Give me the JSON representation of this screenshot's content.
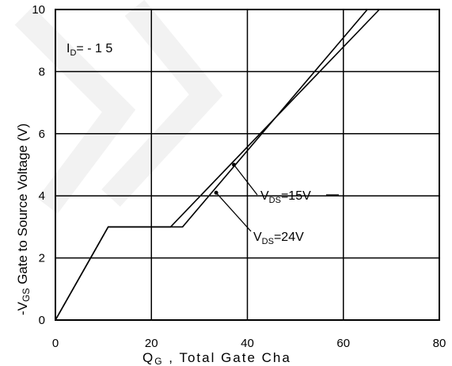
{
  "chart_data": {
    "type": "line",
    "title": "",
    "xlabel": {
      "main": "Q",
      "sub": "G",
      "rest": " , Total Gate Cha"
    },
    "ylabel": {
      "prefix": "-V",
      "sub": "GS",
      "rest": "  Gate to Source Voltage (V)"
    },
    "xlim": [
      0,
      80
    ],
    "ylim": [
      0,
      10
    ],
    "xticks": [
      "0",
      "20",
      "40",
      "60",
      "80"
    ],
    "yticks": [
      "0",
      "2",
      "4",
      "6",
      "8",
      "10"
    ],
    "grid": true,
    "series": [
      {
        "name": "VDS=15V",
        "x": [
          0,
          11,
          24,
          67.5
        ],
        "y": [
          0,
          3,
          3,
          10
        ]
      },
      {
        "name": "VDS=24V",
        "x": [
          0,
          11,
          26.5,
          65
        ],
        "y": [
          0,
          3,
          3,
          10
        ]
      }
    ],
    "annotations": [
      {
        "main": "I",
        "sub": "D",
        "rest": "= - 1 5"
      },
      {
        "main": "V",
        "sub": "DS",
        "rest": "=15V",
        "arrow_to": [
          37.2,
          5.0
        ]
      },
      {
        "main": "V",
        "sub": "DS",
        "rest": "=24V",
        "arrow_to": [
          33.5,
          4.1
        ]
      }
    ]
  }
}
